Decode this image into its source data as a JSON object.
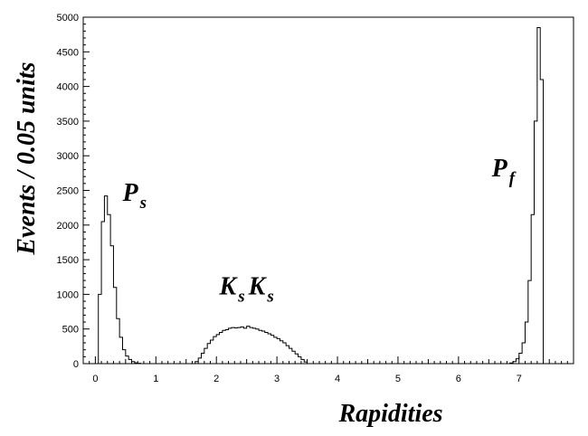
{
  "chart_data": {
    "type": "histogram",
    "xlabel": "Rapidities",
    "ylabel": "Events / 0.05 units",
    "xlim": [
      -0.2,
      7.9
    ],
    "ylim": [
      0,
      5000
    ],
    "x_ticks": [
      "0",
      "1",
      "2",
      "3",
      "4",
      "5",
      "6",
      "7"
    ],
    "y_ticks": [
      "0",
      "500",
      "1000",
      "1500",
      "2000",
      "2500",
      "3000",
      "3500",
      "4000",
      "4500",
      "5000"
    ],
    "bin_width": 0.05,
    "bins": [
      [
        0.0,
        0
      ],
      [
        0.05,
        1000
      ],
      [
        0.1,
        2050
      ],
      [
        0.15,
        2420
      ],
      [
        0.2,
        2150
      ],
      [
        0.25,
        1700
      ],
      [
        0.3,
        1100
      ],
      [
        0.35,
        650
      ],
      [
        0.4,
        380
      ],
      [
        0.45,
        200
      ],
      [
        0.5,
        110
      ],
      [
        0.55,
        60
      ],
      [
        0.6,
        30
      ],
      [
        0.65,
        12
      ],
      [
        0.7,
        5
      ],
      [
        0.75,
        0
      ],
      [
        1.6,
        0
      ],
      [
        1.65,
        30
      ],
      [
        1.7,
        80
      ],
      [
        1.75,
        150
      ],
      [
        1.8,
        220
      ],
      [
        1.85,
        290
      ],
      [
        1.9,
        340
      ],
      [
        1.95,
        390
      ],
      [
        2.0,
        420
      ],
      [
        2.05,
        450
      ],
      [
        2.1,
        480
      ],
      [
        2.15,
        490
      ],
      [
        2.2,
        510
      ],
      [
        2.25,
        520
      ],
      [
        2.3,
        515
      ],
      [
        2.35,
        520
      ],
      [
        2.4,
        530
      ],
      [
        2.45,
        510
      ],
      [
        2.5,
        540
      ],
      [
        2.55,
        520
      ],
      [
        2.6,
        510
      ],
      [
        2.65,
        500
      ],
      [
        2.7,
        480
      ],
      [
        2.75,
        470
      ],
      [
        2.8,
        450
      ],
      [
        2.85,
        430
      ],
      [
        2.9,
        410
      ],
      [
        2.95,
        380
      ],
      [
        3.0,
        360
      ],
      [
        3.05,
        330
      ],
      [
        3.1,
        300
      ],
      [
        3.15,
        260
      ],
      [
        3.2,
        220
      ],
      [
        3.25,
        180
      ],
      [
        3.3,
        140
      ],
      [
        3.35,
        100
      ],
      [
        3.4,
        60
      ],
      [
        3.45,
        25
      ],
      [
        3.5,
        0
      ],
      [
        6.8,
        0
      ],
      [
        6.85,
        10
      ],
      [
        6.9,
        30
      ],
      [
        6.95,
        70
      ],
      [
        7.0,
        150
      ],
      [
        7.05,
        300
      ],
      [
        7.1,
        600
      ],
      [
        7.15,
        1200
      ],
      [
        7.2,
        2150
      ],
      [
        7.25,
        3500
      ],
      [
        7.3,
        4850
      ],
      [
        7.35,
        4100
      ],
      [
        7.4,
        0
      ]
    ],
    "annotations": [
      {
        "label": "P",
        "sub": "s",
        "x": 0.45,
        "y": 2350
      },
      {
        "label": "K",
        "sub": "s",
        "label2": "K",
        "sub2": "s",
        "x": 2.05,
        "y": 1000
      },
      {
        "label": "P",
        "sub": "f",
        "x": 6.55,
        "y": 2700
      }
    ]
  }
}
